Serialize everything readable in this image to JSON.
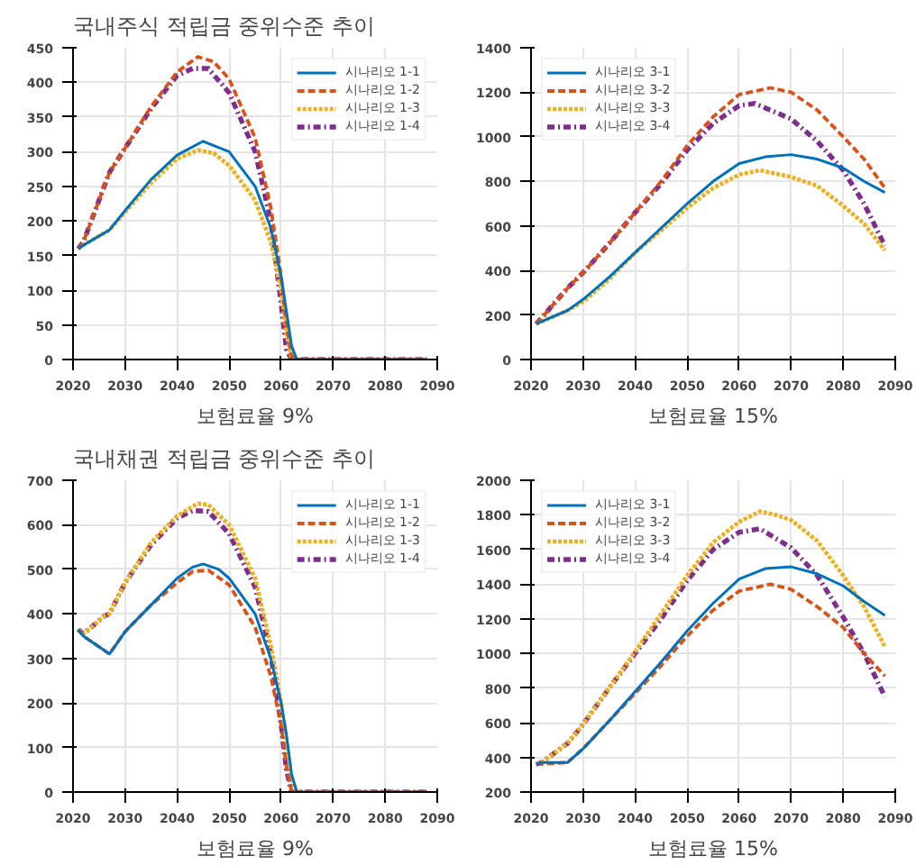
{
  "chart_data": [
    {
      "type": "line",
      "title": "국내주식 적립금 중위수준 추이",
      "xlabel": "보험료율 9%",
      "xlim": [
        2020,
        2090
      ],
      "xticks": [
        2020,
        2030,
        2040,
        2050,
        2060,
        2070,
        2080,
        2090
      ],
      "ylim": [
        0,
        450
      ],
      "yticks": [
        0,
        50,
        100,
        150,
        200,
        250,
        300,
        350,
        400,
        450
      ],
      "grid": true,
      "legend": "top right",
      "series": [
        {
          "name": "시나리오 1-1",
          "color": "#0072bd",
          "line_style": "solid",
          "x": [
            2021,
            2022,
            2027,
            2030,
            2035,
            2040,
            2045,
            2050,
            2055,
            2058,
            2060,
            2061,
            2062,
            2063,
            2088
          ],
          "values": [
            160,
            165,
            187,
            215,
            260,
            295,
            315,
            300,
            250,
            190,
            120,
            70,
            20,
            0,
            0
          ]
        },
        {
          "name": "시나리오 1-2",
          "color": "#d95319",
          "line_style": "dashed",
          "x": [
            2021,
            2022,
            2027,
            2030,
            2035,
            2040,
            2044,
            2047,
            2050,
            2055,
            2058,
            2060,
            2061,
            2062,
            2063,
            2088
          ],
          "values": [
            160,
            170,
            270,
            305,
            365,
            415,
            437,
            430,
            405,
            320,
            220,
            120,
            50,
            5,
            0,
            0
          ]
        },
        {
          "name": "시나리오 1-3",
          "color": "#edb120",
          "line_style": "dotted",
          "x": [
            2021,
            2022,
            2027,
            2030,
            2035,
            2040,
            2044,
            2047,
            2050,
            2055,
            2058,
            2060,
            2061,
            2062,
            2088
          ],
          "values": [
            160,
            165,
            187,
            213,
            255,
            290,
            302,
            298,
            280,
            230,
            170,
            100,
            40,
            0,
            0
          ]
        },
        {
          "name": "시나리오 1-4",
          "color": "#7e2f8e",
          "line_style": "dashdot",
          "x": [
            2021,
            2022,
            2027,
            2030,
            2035,
            2040,
            2043,
            2046,
            2050,
            2055,
            2058,
            2060,
            2061,
            2062,
            2088
          ],
          "values": [
            160,
            170,
            270,
            305,
            362,
            410,
            420,
            420,
            385,
            300,
            200,
            80,
            15,
            0,
            0
          ]
        }
      ]
    },
    {
      "type": "line",
      "xlabel": "보험료율 15%",
      "xlim": [
        2020,
        2090
      ],
      "xticks": [
        2020,
        2030,
        2040,
        2050,
        2060,
        2070,
        2080,
        2090
      ],
      "ylim": [
        0,
        1400
      ],
      "yticks": [
        0,
        200,
        400,
        600,
        800,
        1000,
        1200,
        1400
      ],
      "grid": true,
      "legend": "top left",
      "series": [
        {
          "name": "시나리오 3-1",
          "color": "#0072bd",
          "line_style": "solid",
          "x": [
            2021,
            2027,
            2030,
            2035,
            2040,
            2045,
            2050,
            2055,
            2060,
            2065,
            2070,
            2075,
            2080,
            2084,
            2088
          ],
          "values": [
            160,
            220,
            270,
            370,
            480,
            590,
            700,
            800,
            880,
            910,
            920,
            900,
            860,
            800,
            750
          ]
        },
        {
          "name": "시나리오 3-2",
          "color": "#d95319",
          "line_style": "dashed",
          "x": [
            2021,
            2027,
            2030,
            2035,
            2040,
            2045,
            2050,
            2055,
            2060,
            2066,
            2070,
            2075,
            2080,
            2084,
            2088
          ],
          "values": [
            160,
            320,
            390,
            520,
            660,
            800,
            960,
            1090,
            1190,
            1220,
            1200,
            1120,
            1000,
            900,
            770
          ]
        },
        {
          "name": "시나리오 3-3",
          "color": "#edb120",
          "line_style": "dotted",
          "x": [
            2021,
            2027,
            2030,
            2035,
            2040,
            2045,
            2050,
            2055,
            2060,
            2064,
            2070,
            2075,
            2080,
            2084,
            2088
          ],
          "values": [
            160,
            220,
            260,
            360,
            480,
            580,
            680,
            770,
            830,
            850,
            820,
            780,
            690,
            610,
            490
          ]
        },
        {
          "name": "시나리오 3-4",
          "color": "#7e2f8e",
          "line_style": "dashdot",
          "x": [
            2021,
            2027,
            2030,
            2035,
            2040,
            2045,
            2050,
            2055,
            2060,
            2063,
            2066,
            2070,
            2075,
            2080,
            2084,
            2088
          ],
          "values": [
            160,
            320,
            390,
            520,
            660,
            790,
            940,
            1060,
            1140,
            1150,
            1120,
            1080,
            980,
            850,
            700,
            510
          ]
        }
      ]
    },
    {
      "type": "line",
      "title": "국내채권 적립금 중위수준 추이",
      "xlabel": "보험료율 9%",
      "xlim": [
        2020,
        2090
      ],
      "xticks": [
        2020,
        2030,
        2040,
        2050,
        2060,
        2070,
        2080,
        2090
      ],
      "ylim": [
        0,
        700
      ],
      "yticks": [
        0,
        100,
        200,
        300,
        400,
        500,
        600,
        700
      ],
      "grid": true,
      "legend": "top right",
      "series": [
        {
          "name": "시나리오 1-1",
          "color": "#0072bd",
          "line_style": "solid",
          "x": [
            2021,
            2022,
            2027,
            2030,
            2035,
            2040,
            2043,
            2045,
            2048,
            2050,
            2055,
            2058,
            2060,
            2061,
            2062,
            2063,
            2088
          ],
          "values": [
            365,
            350,
            310,
            360,
            420,
            480,
            505,
            512,
            500,
            480,
            400,
            300,
            200,
            130,
            40,
            0,
            0
          ]
        },
        {
          "name": "시나리오 1-2",
          "color": "#d95319",
          "line_style": "dashed",
          "x": [
            2021,
            2022,
            2027,
            2030,
            2035,
            2040,
            2043,
            2046,
            2050,
            2055,
            2058,
            2060,
            2061,
            2062,
            2088
          ],
          "values": [
            365,
            350,
            310,
            360,
            420,
            470,
            495,
            498,
            465,
            370,
            260,
            150,
            60,
            0,
            0
          ]
        },
        {
          "name": "시나리오 1-3",
          "color": "#edb120",
          "line_style": "dotted",
          "x": [
            2021,
            2022,
            2026,
            2027,
            2030,
            2035,
            2040,
            2044,
            2046,
            2050,
            2055,
            2058,
            2060,
            2061,
            2062,
            2063,
            2088
          ],
          "values": [
            365,
            355,
            395,
            400,
            470,
            560,
            620,
            648,
            645,
            600,
            480,
            330,
            200,
            110,
            30,
            0,
            0
          ]
        },
        {
          "name": "시나리오 1-4",
          "color": "#7e2f8e",
          "line_style": "dashdot",
          "x": [
            2021,
            2022,
            2026,
            2027,
            2030,
            2035,
            2040,
            2043,
            2046,
            2050,
            2055,
            2058,
            2060,
            2061,
            2062,
            2088
          ],
          "values": [
            365,
            355,
            395,
            400,
            470,
            555,
            615,
            632,
            630,
            580,
            460,
            310,
            150,
            50,
            0,
            0
          ]
        }
      ]
    },
    {
      "type": "line",
      "xlabel": "보험료율 15%",
      "xlim": [
        2020,
        2090
      ],
      "xticks": [
        2020,
        2030,
        2040,
        2050,
        2060,
        2070,
        2080,
        2090
      ],
      "ylim": [
        200,
        2000
      ],
      "yticks": [
        200,
        400,
        600,
        800,
        1000,
        1200,
        1400,
        1600,
        1800,
        2000
      ],
      "grid": true,
      "legend": "top left",
      "series": [
        {
          "name": "시나리오 3-1",
          "color": "#0072bd",
          "line_style": "solid",
          "x": [
            2021,
            2022,
            2027,
            2030,
            2035,
            2040,
            2045,
            2050,
            2055,
            2060,
            2065,
            2070,
            2075,
            2080,
            2084,
            2088
          ],
          "values": [
            360,
            370,
            370,
            450,
            610,
            780,
            950,
            1130,
            1290,
            1430,
            1490,
            1500,
            1460,
            1390,
            1300,
            1220
          ]
        },
        {
          "name": "시나리오 3-2",
          "color": "#d95319",
          "line_style": "dashed",
          "x": [
            2021,
            2027,
            2030,
            2035,
            2040,
            2045,
            2050,
            2055,
            2060,
            2066,
            2070,
            2075,
            2080,
            2084,
            2088
          ],
          "values": [
            360,
            370,
            450,
            610,
            770,
            930,
            1100,
            1250,
            1360,
            1400,
            1370,
            1270,
            1150,
            1000,
            870
          ]
        },
        {
          "name": "시나리오 3-3",
          "color": "#edb120",
          "line_style": "dotted",
          "x": [
            2021,
            2022,
            2027,
            2030,
            2035,
            2040,
            2045,
            2050,
            2055,
            2060,
            2064,
            2067,
            2070,
            2075,
            2080,
            2084,
            2088
          ],
          "values": [
            360,
            370,
            480,
            590,
            800,
            1010,
            1230,
            1450,
            1640,
            1760,
            1820,
            1800,
            1770,
            1650,
            1450,
            1270,
            1040
          ]
        },
        {
          "name": "시나리오 3-4",
          "color": "#7e2f8e",
          "line_style": "dashdot",
          "x": [
            2021,
            2022,
            2027,
            2030,
            2035,
            2040,
            2045,
            2050,
            2055,
            2060,
            2064,
            2070,
            2075,
            2080,
            2084,
            2088
          ],
          "values": [
            360,
            370,
            480,
            590,
            800,
            1000,
            1200,
            1420,
            1600,
            1700,
            1720,
            1610,
            1450,
            1210,
            1000,
            750
          ]
        }
      ]
    }
  ]
}
